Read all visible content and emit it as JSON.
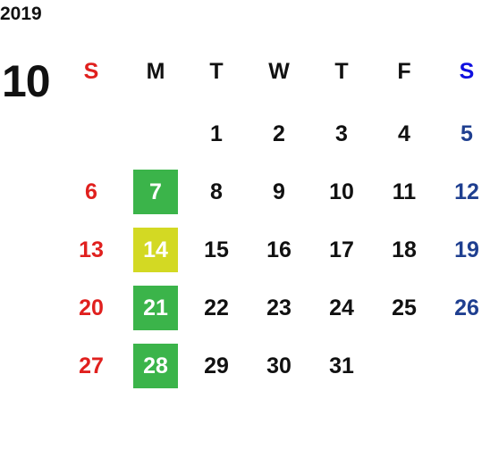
{
  "header": {
    "year": "2019",
    "month": "10"
  },
  "weekdays": [
    "S",
    "M",
    "T",
    "W",
    "T",
    "F",
    "S"
  ],
  "weeks": [
    [
      null,
      null,
      "1",
      "2",
      "3",
      "4",
      "5"
    ],
    [
      "6",
      {
        "day": "7",
        "highlight": "#3bb44a"
      },
      "8",
      "9",
      "10",
      "11",
      "12"
    ],
    [
      "13",
      {
        "day": "14",
        "highlight": "#d3d923"
      },
      "15",
      "16",
      "17",
      "18",
      "19"
    ],
    [
      "20",
      {
        "day": "21",
        "highlight": "#3bb44a"
      },
      "22",
      "23",
      "24",
      "25",
      "26"
    ],
    [
      "27",
      {
        "day": "28",
        "highlight": "#3bb44a"
      },
      "29",
      "30",
      "31",
      null,
      null
    ]
  ]
}
